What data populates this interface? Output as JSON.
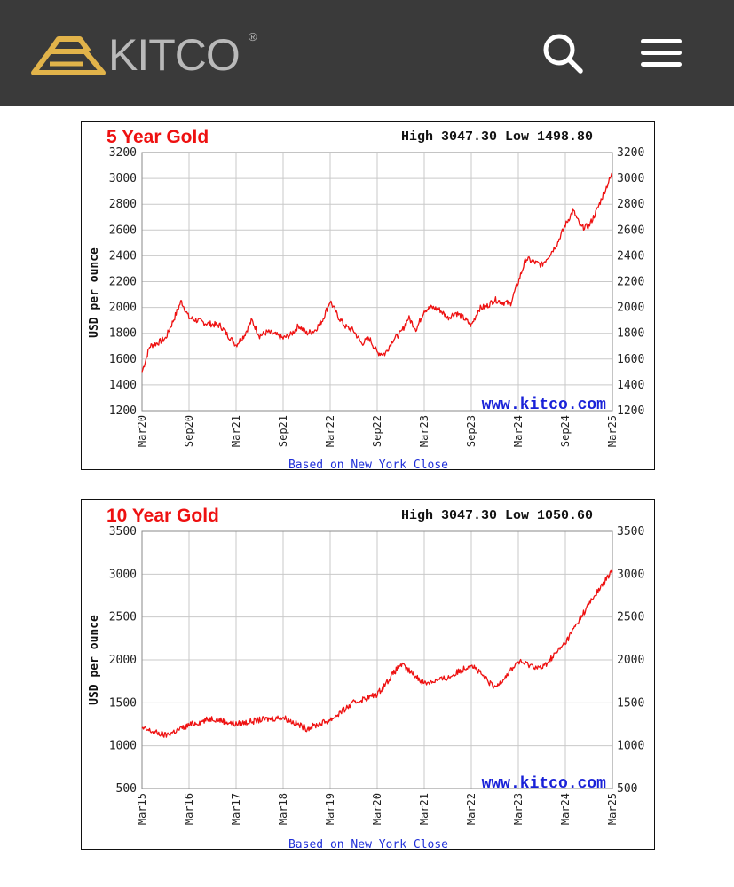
{
  "header": {
    "logo_text": "KITCO",
    "logo_registered": "®",
    "brand_color": "#e1b34a",
    "icons": [
      "kitco-logo-icon",
      "search-icon",
      "menu-icon"
    ]
  },
  "charts": [
    {
      "title": "5 Year Gold",
      "high_low": "High 3047.30 Low 1498.80",
      "ylabel": "USD per ounce",
      "footer": "Based on New York Close",
      "watermark": "www.kitco.com",
      "x_ticks": [
        "Mar20",
        "Sep20",
        "Mar21",
        "Sep21",
        "Mar22",
        "Sep22",
        "Mar23",
        "Sep23",
        "Mar24",
        "Sep24",
        "Mar25"
      ],
      "y_ticks": [
        "3200",
        "3000",
        "2800",
        "2600",
        "2400",
        "2200",
        "2000",
        "1800",
        "1600",
        "1400",
        "1200"
      ]
    },
    {
      "title": "10 Year Gold",
      "high_low": "High 3047.30 Low 1050.60",
      "ylabel": "USD per ounce",
      "footer": "Based on New York Close",
      "watermark": "www.kitco.com",
      "x_ticks": [
        "Mar15",
        "Mar16",
        "Mar17",
        "Mar18",
        "Mar19",
        "Mar20",
        "Mar21",
        "Mar22",
        "Mar23",
        "Mar24",
        "Mar25"
      ],
      "y_ticks": [
        "3500",
        "3000",
        "2500",
        "2000",
        "1500",
        "1000",
        "500"
      ]
    }
  ],
  "chart_data": [
    {
      "type": "line",
      "title": "5 Year Gold",
      "ylabel": "USD per ounce",
      "ylim": [
        1200,
        3200
      ],
      "grid": true,
      "line_color": "#ee1111",
      "series": [
        {
          "x": [
            "Mar20",
            "Apr20",
            "May20",
            "Jun20",
            "Jul20",
            "Aug20",
            "Sep20",
            "Oct20",
            "Nov20",
            "Dec20",
            "Jan21",
            "Feb21",
            "Mar21",
            "Apr21",
            "May21",
            "Jun21",
            "Jul21",
            "Aug21",
            "Sep21",
            "Oct21",
            "Nov21",
            "Dec21",
            "Jan22",
            "Feb22",
            "Mar22",
            "Apr22",
            "May22",
            "Jun22",
            "Jul22",
            "Aug22",
            "Sep22",
            "Oct22",
            "Nov22",
            "Dec22",
            "Jan23",
            "Feb23",
            "Mar23",
            "Apr23",
            "May23",
            "Jun23",
            "Jul23",
            "Aug23",
            "Sep23",
            "Oct23",
            "Nov23",
            "Dec23",
            "Jan24",
            "Feb24",
            "Mar24",
            "Apr24",
            "May24",
            "Jun24",
            "Jul24",
            "Aug24",
            "Sep24",
            "Oct24",
            "Nov24",
            "Dec24",
            "Jan25",
            "Feb25",
            "Mar25"
          ],
          "values": [
            1500,
            1700,
            1725,
            1760,
            1900,
            2050,
            1920,
            1900,
            1880,
            1870,
            1860,
            1780,
            1710,
            1780,
            1900,
            1780,
            1810,
            1790,
            1760,
            1790,
            1860,
            1800,
            1820,
            1900,
            2050,
            1930,
            1850,
            1820,
            1720,
            1760,
            1650,
            1640,
            1750,
            1800,
            1920,
            1830,
            1980,
            2000,
            1980,
            1920,
            1960,
            1920,
            1860,
            1990,
            2010,
            2060,
            2040,
            2030,
            2200,
            2380,
            2350,
            2330,
            2410,
            2500,
            2640,
            2750,
            2620,
            2630,
            2750,
            2900,
            3040
          ]
        }
      ]
    },
    {
      "type": "line",
      "title": "10 Year Gold",
      "ylabel": "USD per ounce",
      "ylim": [
        500,
        3500
      ],
      "grid": true,
      "line_color": "#ee1111",
      "series": [
        {
          "x": [
            "Mar15",
            "Sep15",
            "Mar16",
            "Sep16",
            "Mar17",
            "Sep17",
            "Mar18",
            "Sep18",
            "Mar19",
            "Sep19",
            "Mar20",
            "Sep20",
            "Mar21",
            "Sep21",
            "Mar22",
            "Sep22",
            "Mar23",
            "Sep23",
            "Mar24",
            "Sep24",
            "Mar25"
          ],
          "values": [
            1200,
            1120,
            1240,
            1320,
            1250,
            1300,
            1330,
            1200,
            1300,
            1500,
            1600,
            1950,
            1730,
            1790,
            1950,
            1670,
            1980,
            1900,
            2200,
            2650,
            3040
          ]
        }
      ]
    }
  ]
}
